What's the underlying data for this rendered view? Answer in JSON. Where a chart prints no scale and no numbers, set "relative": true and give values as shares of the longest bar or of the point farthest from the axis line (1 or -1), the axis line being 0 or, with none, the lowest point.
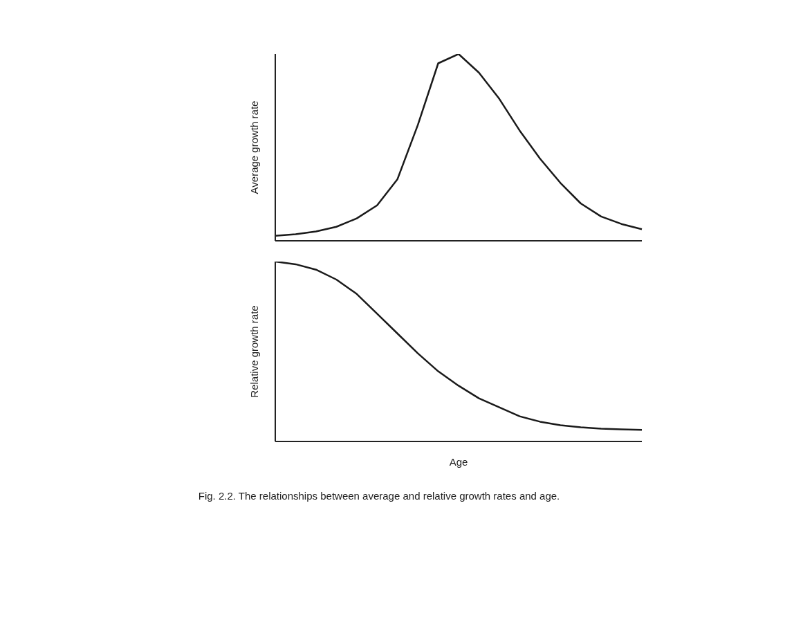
{
  "chart_data": [
    {
      "type": "line",
      "ylabel": "Average growth rate",
      "relative": true,
      "categories": [
        null,
        null,
        null,
        null,
        null,
        null,
        null,
        null,
        null,
        null,
        null,
        null,
        null,
        null,
        null,
        null,
        null,
        null,
        null
      ],
      "series": [
        {
          "color": "#1a1a1a",
          "values": [
            0.027,
            0.035,
            0.05,
            0.075,
            0.12,
            0.19,
            0.33,
            0.62,
            0.95,
            1,
            0.9,
            0.76,
            0.59,
            0.44,
            0.31,
            0.2,
            0.13,
            0.09,
            0.062
          ]
        }
      ],
      "marker": "none",
      "line_style": "solid",
      "grid": false,
      "legend": false
    },
    {
      "type": "line",
      "ylabel": "Relative growth rate",
      "xlabel": "Age",
      "relative": true,
      "categories": [
        null,
        null,
        null,
        null,
        null,
        null,
        null,
        null,
        null,
        null,
        null,
        null,
        null,
        null,
        null,
        null,
        null,
        null,
        null
      ],
      "series": [
        {
          "color": "#1a1a1a",
          "values": [
            1,
            0.985,
            0.955,
            0.9,
            0.82,
            0.71,
            0.6,
            0.49,
            0.39,
            0.31,
            0.24,
            0.19,
            0.14,
            0.11,
            0.09,
            0.079,
            0.071,
            0.067,
            0.064
          ]
        }
      ],
      "marker": "none",
      "line_style": "solid",
      "grid": false,
      "legend": false,
      "annotations": [
        "Fig. 2.2. The relationships between average and relative growth rates and age."
      ]
    }
  ]
}
